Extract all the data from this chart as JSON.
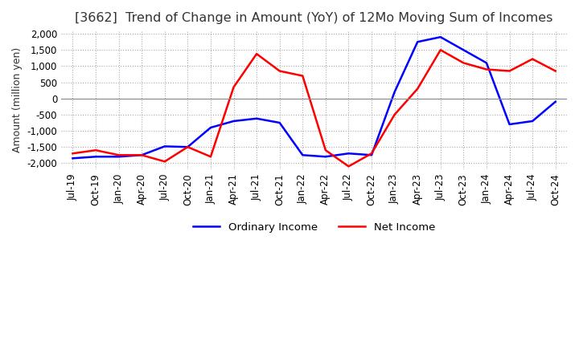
{
  "title": "[3662]  Trend of Change in Amount (YoY) of 12Mo Moving Sum of Incomes",
  "ylabel": "Amount (million yen)",
  "ylim": [
    -2200,
    2100
  ],
  "yticks": [
    -2000,
    -1500,
    -1000,
    -500,
    0,
    500,
    1000,
    1500,
    2000
  ],
  "legend_labels": [
    "Ordinary Income",
    "Net Income"
  ],
  "colors": [
    "#0000ff",
    "#ff0000"
  ],
  "x_labels": [
    "Jul-19",
    "Oct-19",
    "Jan-20",
    "Apr-20",
    "Jul-20",
    "Oct-20",
    "Jan-21",
    "Apr-21",
    "Jul-21",
    "Oct-21",
    "Jan-22",
    "Apr-22",
    "Jul-22",
    "Oct-22",
    "Jan-23",
    "Apr-23",
    "Jul-23",
    "Oct-23",
    "Jan-24",
    "Apr-24",
    "Jul-24",
    "Oct-24"
  ],
  "ordinary_income": [
    -1850,
    -1800,
    -1800,
    -1750,
    -1480,
    -1500,
    -900,
    -700,
    -620,
    -750,
    -1750,
    -1800,
    -1700,
    -1750,
    200,
    1750,
    1900,
    1500,
    1100,
    -800,
    -700,
    -100
  ],
  "net_income": [
    -1700,
    -1600,
    -1750,
    -1750,
    -1950,
    -1500,
    -1800,
    350,
    1380,
    850,
    700,
    -1600,
    -2100,
    -1700,
    -500,
    300,
    1500,
    1100,
    900,
    850,
    1220,
    850
  ],
  "background_color": "#ffffff",
  "grid_color": "#aaaaaa",
  "title_fontsize": 11.5,
  "label_fontsize": 9,
  "tick_fontsize": 8.5
}
